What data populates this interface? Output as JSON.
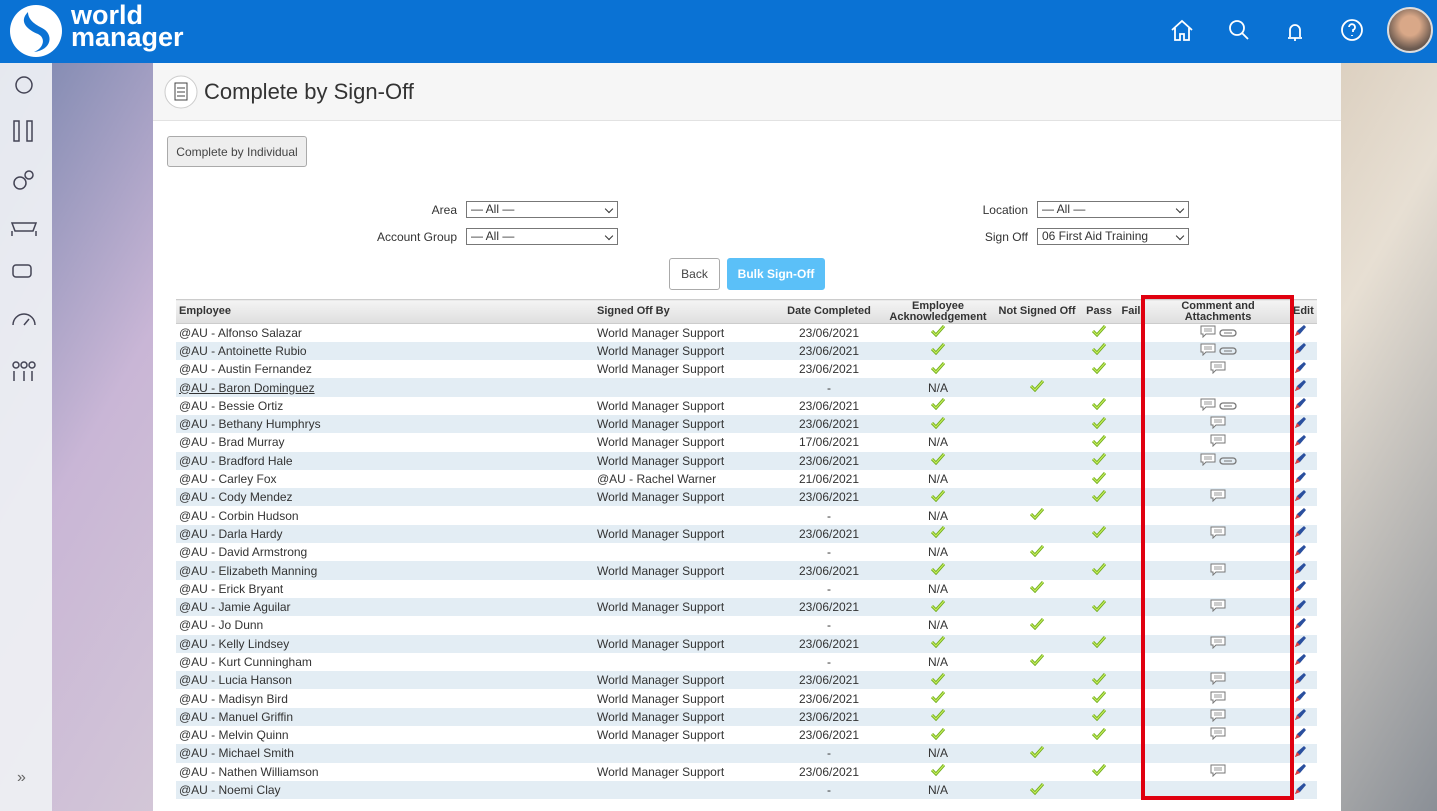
{
  "header": {
    "logo_line1": "world",
    "logo_line2": "manager"
  },
  "page": {
    "title": "Complete by Sign-Off",
    "complete_by_individual": "Complete by Individual",
    "filters": {
      "area_label": "Area",
      "area_value": "— All —",
      "account_group_label": "Account Group",
      "account_group_value": "— All —",
      "location_label": "Location",
      "location_value": "— All —",
      "sign_off_label": "Sign Off",
      "sign_off_value": "06 First Aid Training"
    },
    "back": "Back",
    "bulk": "Bulk Sign-Off"
  },
  "table": {
    "columns": [
      "Employee",
      "Signed Off By",
      "Date Completed",
      "Employee Acknowledgement",
      "Not Signed Off",
      "Pass",
      "Fail",
      "Comment and Attachments",
      "Edit"
    ],
    "rows": [
      {
        "employee": "@AU - Alfonso Salazar",
        "signed_by": "World Manager Support",
        "date": "23/06/2021",
        "ack": true,
        "not_signed": false,
        "pass": true,
        "comment": true,
        "attach": true
      },
      {
        "employee": "@AU - Antoinette Rubio",
        "signed_by": "World Manager Support",
        "date": "23/06/2021",
        "ack": true,
        "not_signed": false,
        "pass": true,
        "comment": true,
        "attach": true
      },
      {
        "employee": "@AU - Austin Fernandez",
        "signed_by": "World Manager Support",
        "date": "23/06/2021",
        "ack": true,
        "not_signed": false,
        "pass": true,
        "comment": true,
        "attach": false
      },
      {
        "employee": "@AU - Baron Dominguez",
        "signed_by": null,
        "date": "-",
        "ack": "N/A",
        "not_signed": true,
        "pass": false,
        "comment": false,
        "attach": false,
        "link": true
      },
      {
        "employee": "@AU - Bessie Ortiz",
        "signed_by": "World Manager Support",
        "date": "23/06/2021",
        "ack": true,
        "not_signed": false,
        "pass": true,
        "comment": true,
        "attach": true
      },
      {
        "employee": "@AU - Bethany Humphrys",
        "signed_by": "World Manager Support",
        "date": "23/06/2021",
        "ack": true,
        "not_signed": false,
        "pass": true,
        "comment": true,
        "attach": false
      },
      {
        "employee": "@AU - Brad Murray",
        "signed_by": "World Manager Support",
        "date": "17/06/2021",
        "ack": "N/A",
        "not_signed": false,
        "pass": true,
        "comment": true,
        "attach": false
      },
      {
        "employee": "@AU - Bradford Hale",
        "signed_by": "World Manager Support",
        "date": "23/06/2021",
        "ack": true,
        "not_signed": false,
        "pass": true,
        "comment": true,
        "attach": true
      },
      {
        "employee": "@AU - Carley Fox",
        "signed_by": "@AU - Rachel Warner",
        "date": "21/06/2021",
        "ack": "N/A",
        "not_signed": false,
        "pass": true,
        "comment": false,
        "attach": false
      },
      {
        "employee": "@AU - Cody Mendez",
        "signed_by": "World Manager Support",
        "date": "23/06/2021",
        "ack": true,
        "not_signed": false,
        "pass": true,
        "comment": true,
        "attach": false
      },
      {
        "employee": "@AU - Corbin Hudson",
        "signed_by": null,
        "date": "-",
        "ack": "N/A",
        "not_signed": true,
        "pass": false,
        "comment": false,
        "attach": false
      },
      {
        "employee": "@AU - Darla Hardy",
        "signed_by": "World Manager Support",
        "date": "23/06/2021",
        "ack": true,
        "not_signed": false,
        "pass": true,
        "comment": true,
        "attach": false
      },
      {
        "employee": "@AU - David Armstrong",
        "signed_by": null,
        "date": "-",
        "ack": "N/A",
        "not_signed": true,
        "pass": false,
        "comment": false,
        "attach": false
      },
      {
        "employee": "@AU - Elizabeth Manning",
        "signed_by": "World Manager Support",
        "date": "23/06/2021",
        "ack": true,
        "not_signed": false,
        "pass": true,
        "comment": true,
        "attach": false
      },
      {
        "employee": "@AU - Erick Bryant",
        "signed_by": null,
        "date": "-",
        "ack": "N/A",
        "not_signed": true,
        "pass": false,
        "comment": false,
        "attach": false
      },
      {
        "employee": "@AU - Jamie Aguilar",
        "signed_by": "World Manager Support",
        "date": "23/06/2021",
        "ack": true,
        "not_signed": false,
        "pass": true,
        "comment": true,
        "attach": false
      },
      {
        "employee": "@AU - Jo Dunn",
        "signed_by": null,
        "date": "-",
        "ack": "N/A",
        "not_signed": true,
        "pass": false,
        "comment": false,
        "attach": false
      },
      {
        "employee": "@AU - Kelly Lindsey",
        "signed_by": "World Manager Support",
        "date": "23/06/2021",
        "ack": true,
        "not_signed": false,
        "pass": true,
        "comment": true,
        "attach": false
      },
      {
        "employee": "@AU - Kurt Cunningham",
        "signed_by": null,
        "date": "-",
        "ack": "N/A",
        "not_signed": true,
        "pass": false,
        "comment": false,
        "attach": false
      },
      {
        "employee": "@AU - Lucia Hanson",
        "signed_by": "World Manager Support",
        "date": "23/06/2021",
        "ack": true,
        "not_signed": false,
        "pass": true,
        "comment": true,
        "attach": false
      },
      {
        "employee": "@AU - Madisyn Bird",
        "signed_by": "World Manager Support",
        "date": "23/06/2021",
        "ack": true,
        "not_signed": false,
        "pass": true,
        "comment": true,
        "attach": false
      },
      {
        "employee": "@AU - Manuel Griffin",
        "signed_by": "World Manager Support",
        "date": "23/06/2021",
        "ack": true,
        "not_signed": false,
        "pass": true,
        "comment": true,
        "attach": false
      },
      {
        "employee": "@AU - Melvin Quinn",
        "signed_by": "World Manager Support",
        "date": "23/06/2021",
        "ack": true,
        "not_signed": false,
        "pass": true,
        "comment": true,
        "attach": false
      },
      {
        "employee": "@AU - Michael Smith",
        "signed_by": null,
        "date": "-",
        "ack": "N/A",
        "not_signed": true,
        "pass": false,
        "comment": false,
        "attach": false
      },
      {
        "employee": "@AU - Nathen Williamson",
        "signed_by": "World Manager Support",
        "date": "23/06/2021",
        "ack": true,
        "not_signed": false,
        "pass": true,
        "comment": true,
        "attach": false
      },
      {
        "employee": "@AU - Noemi Clay",
        "signed_by": null,
        "date": "-",
        "ack": "N/A",
        "not_signed": true,
        "pass": false,
        "comment": false,
        "attach": false
      }
    ]
  }
}
